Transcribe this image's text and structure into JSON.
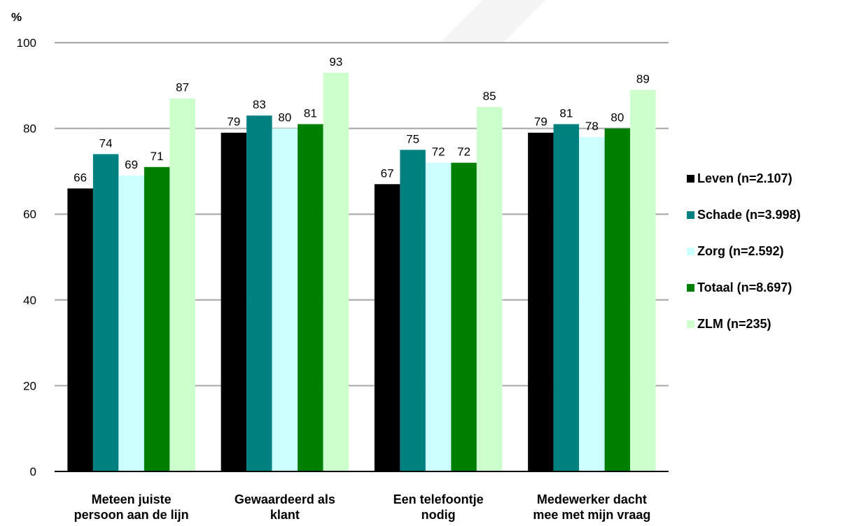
{
  "chart_data": {
    "type": "bar",
    "ylabel": "%",
    "ylim": [
      0,
      100
    ],
    "yticks": [
      "0",
      "20",
      "40",
      "60",
      "80",
      "100"
    ],
    "grid": true,
    "legend_position": "right",
    "categories": [
      [
        "Meteen juiste",
        "persoon aan de lijn"
      ],
      [
        "Gewaardeerd als",
        "klant"
      ],
      [
        "Een telefoontje",
        "nodig"
      ],
      [
        "Medewerker dacht",
        "mee met mijn vraag"
      ]
    ],
    "series": [
      {
        "name": "Leven (n=2.107)",
        "color": "#000000",
        "values": [
          66,
          79,
          67,
          79
        ]
      },
      {
        "name": "Schade (n=3.998)",
        "color": "#008080",
        "values": [
          74,
          83,
          75,
          81
        ]
      },
      {
        "name": "Zorg (n=2.592)",
        "color": "#ccffff",
        "values": [
          69,
          80,
          72,
          78
        ]
      },
      {
        "name": "Totaal (n=8.697)",
        "color": "#008000",
        "values": [
          71,
          81,
          72,
          80
        ]
      },
      {
        "name": "ZLM (n=235)",
        "color": "#ccffcc",
        "values": [
          87,
          93,
          85,
          89
        ]
      }
    ]
  }
}
